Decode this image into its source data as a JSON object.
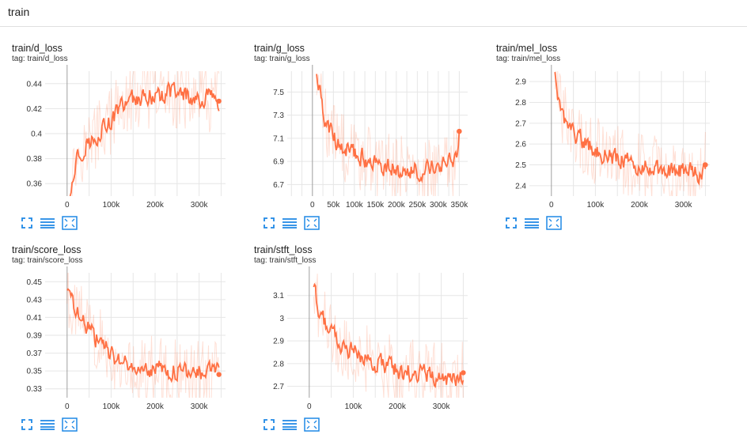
{
  "section": {
    "title": "train"
  },
  "accent_color": "#ff7043",
  "icons": [
    "fullscreen-icon",
    "toggle-log-icon",
    "fit-domain-icon"
  ],
  "cards": [
    {
      "title": "train/d_loss",
      "tag": "tag: train/d_loss",
      "chart_data": {
        "type": "line",
        "xticks": [
          0,
          100000,
          200000,
          300000
        ],
        "xtick_labels": [
          "0",
          "100k",
          "200k",
          "300k"
        ],
        "yticks": [
          0.36,
          0.38,
          0.4,
          0.42,
          0.44
        ],
        "ytick_labels": [
          "0.36",
          "0.38",
          "0.4",
          "0.42",
          "0.44"
        ],
        "xlim": [
          -50000,
          360000
        ],
        "ylim": [
          0.35,
          0.45
        ],
        "series": [
          {
            "x": [
              5000,
              15000,
              25000,
              40000,
              60000,
              80000,
              100000,
              120000,
              150000,
              180000,
              210000,
              240000,
              270000,
              300000,
              330000,
              345000
            ],
            "values": [
              0.352,
              0.37,
              0.385,
              0.39,
              0.395,
              0.405,
              0.41,
              0.42,
              0.428,
              0.43,
              0.43,
              0.432,
              0.43,
              0.428,
              0.428,
              0.426
            ]
          }
        ]
      }
    },
    {
      "title": "train/g_loss",
      "tag": "tag: train/g_loss",
      "chart_data": {
        "type": "line",
        "xticks": [
          0,
          50000,
          100000,
          150000,
          200000,
          250000,
          300000,
          350000
        ],
        "xtick_labels": [
          "0",
          "50k",
          "100k",
          "150k",
          "200k",
          "250k",
          "300k",
          "350k"
        ],
        "yticks": [
          6.7,
          6.9,
          7.1,
          7.3,
          7.5
        ],
        "ytick_labels": [
          "6.7",
          "6.9",
          "7.1",
          "7.3",
          "7.5"
        ],
        "xlim": [
          -60000,
          370000
        ],
        "ylim": [
          6.6,
          7.68
        ],
        "series": [
          {
            "x": [
              10000,
              20000,
              30000,
              50000,
              80000,
              110000,
              140000,
              170000,
              200000,
              230000,
              260000,
              290000,
              320000,
              345000,
              350000
            ],
            "values": [
              7.6,
              7.45,
              7.25,
              7.1,
              7.0,
              6.95,
              6.9,
              6.85,
              6.83,
              6.83,
              6.82,
              6.85,
              6.88,
              6.9,
              7.16
            ]
          }
        ]
      }
    },
    {
      "title": "train/mel_loss",
      "tag": "tag: train/mel_loss",
      "chart_data": {
        "type": "line",
        "xticks": [
          0,
          100000,
          200000,
          300000
        ],
        "xtick_labels": [
          "0",
          "100k",
          "200k",
          "300k"
        ],
        "yticks": [
          2.4,
          2.5,
          2.6,
          2.7,
          2.8,
          2.9
        ],
        "ytick_labels": [
          "2.4",
          "2.5",
          "2.6",
          "2.7",
          "2.8",
          "2.9"
        ],
        "xlim": [
          -50000,
          360000
        ],
        "ylim": [
          2.35,
          2.95
        ],
        "series": [
          {
            "x": [
              8000,
              15000,
              25000,
              40000,
              60000,
              80000,
              100000,
              130000,
              160000,
              190000,
              220000,
              250000,
              280000,
              310000,
              340000,
              350000
            ],
            "values": [
              2.93,
              2.82,
              2.75,
              2.68,
              2.63,
              2.6,
              2.57,
              2.54,
              2.52,
              2.5,
              2.49,
              2.48,
              2.47,
              2.47,
              2.46,
              2.5
            ]
          }
        ]
      }
    },
    {
      "title": "train/score_loss",
      "tag": "tag: train/score_loss",
      "chart_data": {
        "type": "line",
        "xticks": [
          0,
          100000,
          200000,
          300000
        ],
        "xtick_labels": [
          "0",
          "100k",
          "200k",
          "300k"
        ],
        "yticks": [
          0.33,
          0.35,
          0.37,
          0.39,
          0.41,
          0.43,
          0.45
        ],
        "ytick_labels": [
          "0.33",
          "0.35",
          "0.37",
          "0.39",
          "0.41",
          "0.43",
          "0.45"
        ],
        "xlim": [
          -50000,
          360000
        ],
        "ylim": [
          0.32,
          0.46
        ],
        "series": [
          {
            "x": [
              0,
              10000,
              20000,
              35000,
              50000,
              70000,
              90000,
              110000,
              130000,
              160000,
              190000,
              220000,
              250000,
              280000,
              310000,
              340000,
              345000
            ],
            "values": [
              0.44,
              0.43,
              0.42,
              0.405,
              0.395,
              0.385,
              0.375,
              0.365,
              0.36,
              0.355,
              0.352,
              0.35,
              0.35,
              0.349,
              0.349,
              0.348,
              0.346
            ]
          }
        ]
      }
    },
    {
      "title": "train/stft_loss",
      "tag": "tag: train/stft_loss",
      "chart_data": {
        "type": "line",
        "xticks": [
          0,
          100000,
          200000,
          300000
        ],
        "xtick_labels": [
          "0",
          "100k",
          "200k",
          "300k"
        ],
        "yticks": [
          2.7,
          2.8,
          2.9,
          3,
          3.1
        ],
        "ytick_labels": [
          "2.7",
          "2.8",
          "2.9",
          "3",
          "3.1"
        ],
        "xlim": [
          -50000,
          360000
        ],
        "ylim": [
          2.65,
          3.2
        ],
        "series": [
          {
            "x": [
              10000,
              20000,
              35000,
              50000,
              70000,
              90000,
              110000,
              140000,
              170000,
              200000,
              230000,
              260000,
              290000,
              320000,
              345000,
              350000
            ],
            "values": [
              3.15,
              3.05,
              2.98,
              2.93,
              2.89,
              2.86,
              2.84,
              2.81,
              2.79,
              2.77,
              2.76,
              2.75,
              2.74,
              2.74,
              2.73,
              2.76
            ]
          }
        ]
      }
    }
  ]
}
